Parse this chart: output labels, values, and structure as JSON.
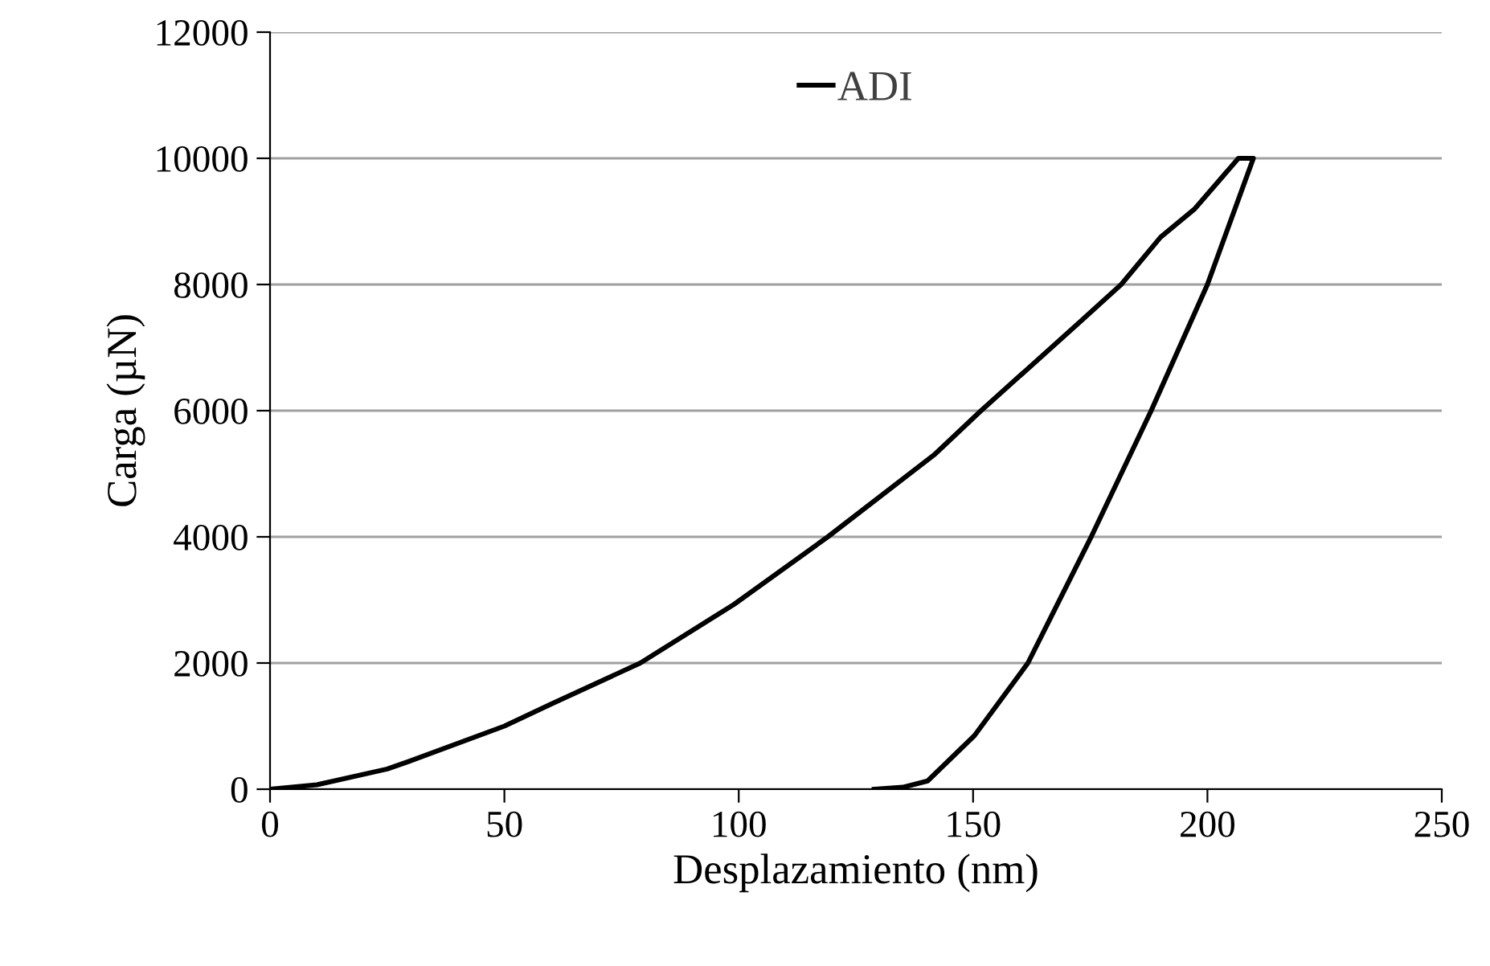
{
  "chart_data": {
    "type": "line",
    "xlabel": "Desplazamiento (nm)",
    "ylabel": "Carga (µN)",
    "xlim": [
      0,
      250
    ],
    "xticks": [
      0,
      50,
      100,
      150,
      200,
      250
    ],
    "ylim": [
      0,
      12000
    ],
    "yticks": [
      0,
      2000,
      4000,
      6000,
      8000,
      10000,
      12000
    ],
    "grid": "y",
    "legend": "top",
    "marker": "none",
    "line_style": "solid",
    "series": [
      {
        "name": "ADI",
        "color": "#000000",
        "x": [
          0,
          10,
          25,
          30,
          50,
          60,
          79,
          99,
          119,
          141.7,
          151.7,
          173,
          181.6,
          190,
          197.3,
          206.6,
          209.8,
          200,
          188,
          175.2,
          161.7,
          150.3,
          140.3,
          135,
          128.9
        ],
        "values": [
          0,
          70,
          320,
          450,
          1000,
          1350,
          2000,
          2930,
          4000,
          5300,
          6000,
          7420,
          8000,
          8750,
          9200,
          10000,
          10000,
          8000,
          6000,
          4000,
          2000,
          850,
          130,
          30,
          0
        ]
      }
    ]
  }
}
